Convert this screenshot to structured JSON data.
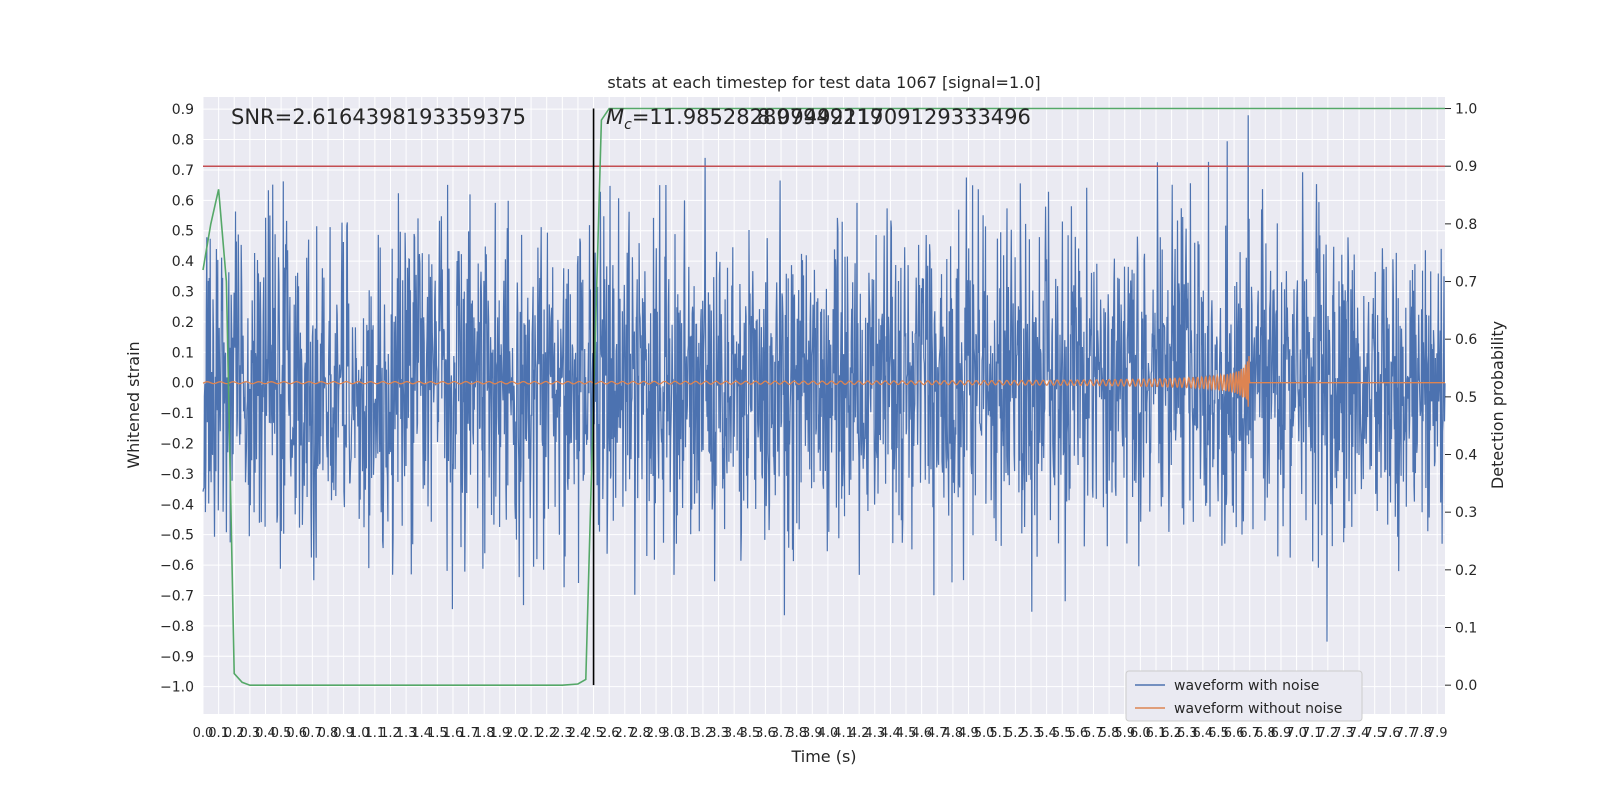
{
  "chart_data": {
    "type": "line",
    "title": "stats at each timestep for test data 1067 [signal=1.0]",
    "xlabel": "Time (s)",
    "ylabel": "Whitened strain",
    "y2label": "Detection probability",
    "xlim": [
      0.0,
      7.95
    ],
    "ylim": [
      -1.09,
      0.94
    ],
    "y2lim": [
      -0.05,
      1.02
    ],
    "x_ticks": [
      0.0,
      0.1,
      0.2,
      0.3,
      0.4,
      0.5,
      0.6,
      0.7,
      0.8,
      0.9,
      1.0,
      1.1,
      1.2,
      1.3,
      1.4,
      1.5,
      1.6,
      1.7,
      1.8,
      1.9,
      2.0,
      2.1,
      2.2,
      2.3,
      2.4,
      2.5,
      2.6,
      2.7,
      2.8,
      2.9,
      3.0,
      3.1,
      3.2,
      3.3,
      3.4,
      3.5,
      3.6,
      3.7,
      3.8,
      3.9,
      4.0,
      4.1,
      4.2,
      4.3,
      4.4,
      4.5,
      4.6,
      4.7,
      4.8,
      4.9,
      5.0,
      5.1,
      5.2,
      5.3,
      5.4,
      5.5,
      5.6,
      5.7,
      5.8,
      5.9,
      6.0,
      6.1,
      6.2,
      6.3,
      6.4,
      6.5,
      6.6,
      6.7,
      6.8,
      6.9,
      7.0,
      7.1,
      7.2,
      7.3,
      7.4,
      7.5,
      7.6,
      7.7,
      7.8,
      7.9
    ],
    "x_tick_labels": [
      "0.0",
      "0.1",
      "0.2",
      "0.3",
      "0.4",
      "0.5",
      "0.6",
      "0.7",
      "0.8",
      "0.9",
      "1.0",
      "1.1",
      "1.2",
      "1.3",
      "1.4",
      "1.5",
      "1.6",
      "1.7",
      "1.8",
      "1.9",
      "2.0",
      "2.1",
      "2.2",
      "2.3",
      "2.4",
      "2.5",
      "2.6",
      "2.7",
      "2.8",
      "2.9",
      "3.0",
      "3.1",
      "3.2",
      "3.3",
      "3.4",
      "3.5",
      "3.6",
      "3.7",
      "3.8",
      "3.9",
      "4.0",
      "4.1",
      "4.2",
      "4.3",
      "4.4",
      "4.5",
      "4.6",
      "4.7",
      "4.8",
      "4.9",
      "5.0",
      "5.1",
      "5.2",
      "5.3",
      "5.4",
      "5.5",
      "5.6",
      "5.7",
      "5.8",
      "5.9",
      "6.0",
      "6.1",
      "6.2",
      "6.3",
      "6.4",
      "6.5",
      "6.6",
      "6.7",
      "6.8",
      "6.9",
      "7.0",
      "7.1",
      "7.2",
      "7.3",
      "7.4",
      "7.5",
      "7.6",
      "7.7",
      "7.8",
      "7.9"
    ],
    "y_ticks": [
      0.9,
      0.8,
      0.7,
      0.6,
      0.5,
      0.4,
      0.3,
      0.2,
      0.1,
      0.0,
      -0.1,
      -0.2,
      -0.3,
      -0.4,
      -0.5,
      -0.6,
      -0.7,
      -0.8,
      -0.9,
      -1.0
    ],
    "y_tick_labels": [
      "0.9",
      "0.8",
      "0.7",
      "0.6",
      "0.5",
      "0.4",
      "0.3",
      "0.2",
      "0.1",
      "0.0",
      "−0.1",
      "−0.2",
      "−0.3",
      "−0.4",
      "−0.5",
      "−0.6",
      "−0.7",
      "−0.8",
      "−0.9",
      "−1.0"
    ],
    "y2_ticks": [
      1.0,
      0.9,
      0.8,
      0.7,
      0.6,
      0.5,
      0.4,
      0.3,
      0.2,
      0.1,
      0.0
    ],
    "y2_tick_labels": [
      "1.0",
      "0.9",
      "0.8",
      "0.7",
      "0.6",
      "0.5",
      "0.4",
      "0.3",
      "0.2",
      "0.1",
      "0.0"
    ],
    "grid": true,
    "legend_position": "bottom-right",
    "series": [
      {
        "name": "waveform with noise",
        "color": "#4c72b0",
        "kind": "noise",
        "typical_amplitude": 0.3,
        "peak_amplitude": 1.0
      },
      {
        "name": "waveform without noise",
        "color": "#dd8452",
        "kind": "chirp",
        "merger_time": 6.7,
        "peak_amplitude": 0.1,
        "baseline": 0.0
      }
    ],
    "detection_probability": {
      "color": "#55a868",
      "axis": "right",
      "x": [
        0.0,
        0.05,
        0.1,
        0.15,
        0.2,
        0.25,
        0.3,
        0.5,
        1.0,
        1.5,
        2.0,
        2.3,
        2.4,
        2.45,
        2.5,
        2.55,
        2.6,
        7.95
      ],
      "y": [
        0.72,
        0.8,
        0.86,
        0.7,
        0.02,
        0.005,
        0.0,
        0.0,
        0.0,
        0.0,
        0.0,
        0.0,
        0.002,
        0.01,
        0.5,
        0.98,
        1.0,
        1.0
      ]
    },
    "threshold": {
      "color": "#c44e52",
      "axis": "right",
      "y": 0.9
    },
    "marker_line": {
      "color": "#000000",
      "x": 2.5
    },
    "annotations": [
      "SNR=2.6164398193359375",
      "M_c=11.985282897949219",
      "8.0949211709129333496"
    ]
  }
}
